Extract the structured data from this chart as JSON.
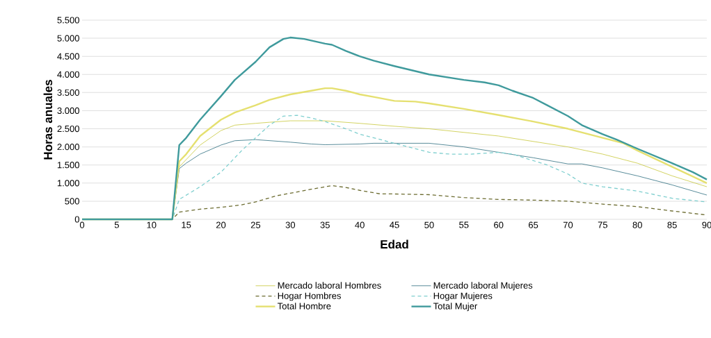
{
  "chart_data": {
    "type": "line",
    "xlabel": "Edad",
    "ylabel": "Horas anuales",
    "xlim": [
      0,
      90
    ],
    "ylim": [
      0,
      5500
    ],
    "xticks": [
      0,
      5,
      10,
      15,
      20,
      25,
      30,
      35,
      40,
      45,
      50,
      55,
      60,
      65,
      70,
      75,
      80,
      85,
      90
    ],
    "yticks": [
      0,
      500,
      {
        "value": 1000,
        "label": "1.000"
      },
      {
        "value": 1500,
        "label": "1.500"
      },
      {
        "value": 2000,
        "label": "2.000"
      },
      {
        "value": 2500,
        "label": "2.500"
      },
      {
        "value": 3000,
        "label": "3.000"
      },
      {
        "value": 3500,
        "label": "3.500"
      },
      {
        "value": 4000,
        "label": "4.000"
      },
      {
        "value": 4500,
        "label": "4.500"
      },
      {
        "value": 5000,
        "label": "5.000"
      },
      {
        "value": 5500,
        "label": "5.500"
      }
    ],
    "grid": "y",
    "legend": "bottom",
    "marker": "none",
    "series": [
      {
        "name": "Mercado laboral Hombres",
        "color": "#c8c83a",
        "line_style": "solid",
        "x": [
          0,
          13,
          14,
          15,
          17,
          20,
          22,
          25,
          27,
          30,
          35,
          40,
          45,
          50,
          55,
          60,
          65,
          70,
          75,
          80,
          85,
          90
        ],
        "values": [
          0,
          0,
          1450,
          1650,
          2050,
          2450,
          2600,
          2650,
          2680,
          2720,
          2720,
          2650,
          2570,
          2500,
          2400,
          2300,
          2150,
          2000,
          1800,
          1550,
          1200,
          900
        ]
      },
      {
        "name": "Mercado laboral Mujeres",
        "color": "#2f6f80",
        "line_style": "solid",
        "x": [
          0,
          13,
          14,
          15,
          17,
          20,
          22,
          25,
          30,
          33,
          35,
          40,
          42,
          45,
          50,
          55,
          60,
          65,
          70,
          72,
          75,
          80,
          85,
          90
        ],
        "values": [
          0,
          0,
          1400,
          1550,
          1800,
          2050,
          2170,
          2200,
          2130,
          2080,
          2060,
          2080,
          2100,
          2100,
          2100,
          2000,
          1850,
          1700,
          1530,
          1530,
          1420,
          1200,
          950,
          670
        ]
      },
      {
        "name": "Hogar Hombres",
        "color": "#6b6b2f",
        "line_style": "dashed",
        "x": [
          0,
          13,
          14,
          17,
          20,
          23,
          25,
          28,
          30,
          33,
          36,
          38,
          40,
          43,
          45,
          50,
          55,
          60,
          65,
          70,
          75,
          80,
          85,
          90
        ],
        "values": [
          0,
          0,
          200,
          280,
          330,
          400,
          480,
          650,
          720,
          830,
          930,
          880,
          800,
          700,
          700,
          680,
          600,
          550,
          530,
          500,
          420,
          350,
          230,
          120
        ]
      },
      {
        "name": "Hogar Mujeres",
        "color": "#7fcfcf",
        "line_style": "dashed",
        "x": [
          0,
          13,
          14,
          17,
          20,
          23,
          27,
          29,
          31,
          33,
          35,
          38,
          40,
          45,
          50,
          53,
          56,
          60,
          62,
          65,
          67,
          70,
          72,
          75,
          80,
          85,
          90
        ],
        "values": [
          0,
          0,
          550,
          900,
          1300,
          1900,
          2600,
          2850,
          2870,
          2800,
          2700,
          2500,
          2350,
          2100,
          1850,
          1800,
          1800,
          1850,
          1800,
          1620,
          1500,
          1250,
          1000,
          900,
          780,
          580,
          480
        ]
      },
      {
        "name": "Total Hombre",
        "color": "#e5e070",
        "line_style": "solid",
        "x": [
          0,
          13,
          14,
          15,
          17,
          20,
          22,
          25,
          27,
          30,
          33,
          35,
          36,
          38,
          40,
          42,
          45,
          48,
          50,
          55,
          60,
          65,
          70,
          75,
          78,
          80,
          85,
          90
        ],
        "values": [
          0,
          0,
          1600,
          1800,
          2300,
          2750,
          2950,
          3150,
          3300,
          3450,
          3550,
          3620,
          3620,
          3550,
          3450,
          3380,
          3270,
          3250,
          3200,
          3050,
          2880,
          2700,
          2500,
          2250,
          2100,
          1900,
          1450,
          1000
        ]
      },
      {
        "name": "Total Mujer",
        "color": "#3f9a9c",
        "line_style": "solid",
        "x": [
          0,
          13,
          14,
          15,
          17,
          20,
          22,
          25,
          27,
          29,
          30,
          32,
          35,
          36,
          38,
          40,
          42,
          45,
          50,
          55,
          58,
          60,
          62,
          65,
          67,
          70,
          72,
          75,
          77,
          80,
          85,
          88,
          90
        ],
        "values": [
          0,
          0,
          2050,
          2250,
          2750,
          3400,
          3850,
          4350,
          4750,
          4980,
          5020,
          4980,
          4850,
          4820,
          4650,
          4500,
          4380,
          4230,
          4000,
          3850,
          3780,
          3700,
          3550,
          3350,
          3150,
          2850,
          2600,
          2350,
          2200,
          1950,
          1550,
          1300,
          1100
        ]
      }
    ]
  }
}
